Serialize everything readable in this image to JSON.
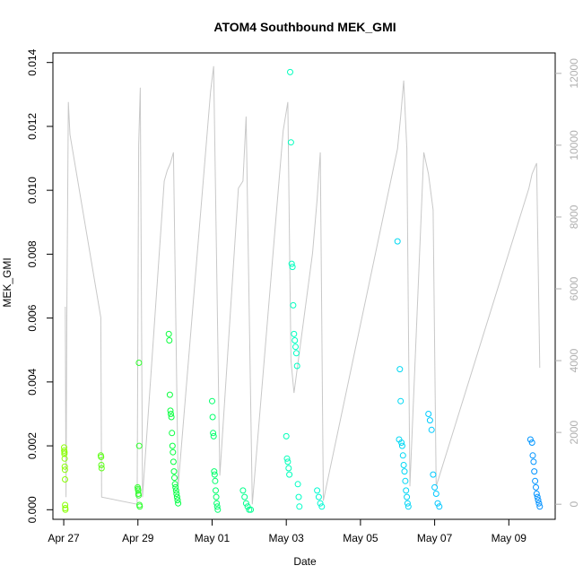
{
  "chart_data": {
    "type": "scatter",
    "title": "ATOM4 Southbound MEK_GMI",
    "xlabel": "Date",
    "ylabel": "MEK_GMI",
    "ylabel_right": "",
    "x_axis": {
      "type": "date",
      "ticks": [
        "Apr 27",
        "Apr 29",
        "May 01",
        "May 03",
        "May 05",
        "May 07",
        "May 09"
      ],
      "tick_values": [
        "2016-04-27",
        "2016-04-29",
        "2016-05-01",
        "2016-05-03",
        "2016-05-05",
        "2016-05-07",
        "2016-05-09"
      ],
      "range": [
        "2016-04-26T17:00",
        "2016-05-10T06:00"
      ]
    },
    "y_left": {
      "ticks": [
        "0.000",
        "0.002",
        "0.004",
        "0.006",
        "0.008",
        "0.010",
        "0.012",
        "0.014"
      ],
      "range": [
        -0.0003,
        0.0143
      ]
    },
    "y_right": {
      "ticks": [
        "0",
        "2000",
        "4000",
        "6000",
        "8000",
        "10000",
        "12000"
      ],
      "range": [
        -420,
        12570
      ],
      "color": "#b0b0b0"
    },
    "colors": {
      "altitude_line": "#c8c8c8",
      "point_gradient": [
        "#99ff00",
        "#00ff44",
        "#00ffcc",
        "#00ccff",
        "#0088ff"
      ]
    },
    "altitude_series": {
      "name": "",
      "color": "#c8c8c8",
      "points": [
        [
          "2016-04-27T01:00",
          5500
        ],
        [
          "2016-04-27T01:30",
          200
        ],
        [
          "2016-04-27T02:00",
          5200
        ],
        [
          "2016-04-27T03:00",
          11200
        ],
        [
          "2016-04-27T04:00",
          10300
        ],
        [
          "2016-04-28T00:00",
          5200
        ],
        [
          "2016-04-28T00:30",
          200
        ],
        [
          "2016-04-28T23:30",
          0
        ],
        [
          "2016-04-29T00:30",
          10000
        ],
        [
          "2016-04-29T01:30",
          11600
        ],
        [
          "2016-04-29T03:00",
          200
        ],
        [
          "2016-04-29T17:00",
          9000
        ],
        [
          "2016-04-29T19:00",
          9300
        ],
        [
          "2016-04-29T21:00",
          9500
        ],
        [
          "2016-04-29T23:00",
          9800
        ],
        [
          "2016-04-30T02:00",
          500
        ],
        [
          "2016-04-30T23:00",
          11500
        ],
        [
          "2016-05-01T01:00",
          12200
        ],
        [
          "2016-05-01T05:00",
          800
        ],
        [
          "2016-05-01T17:00",
          8800
        ],
        [
          "2016-05-01T20:00",
          9000
        ],
        [
          "2016-05-01T22:00",
          10800
        ],
        [
          "2016-05-02T02:00",
          0
        ],
        [
          "2016-05-02T22:00",
          10400
        ],
        [
          "2016-05-03T01:00",
          11200
        ],
        [
          "2016-05-03T03:00",
          4000
        ],
        [
          "2016-05-03T05:00",
          3100
        ],
        [
          "2016-05-03T17:00",
          7000
        ],
        [
          "2016-05-03T20:00",
          8500
        ],
        [
          "2016-05-03T22:00",
          9800
        ],
        [
          "2016-05-04T00:00",
          100
        ],
        [
          "2016-05-06T00:00",
          9900
        ],
        [
          "2016-05-06T02:00",
          10800
        ],
        [
          "2016-05-06T04:00",
          11800
        ],
        [
          "2016-05-06T06:00",
          9900
        ],
        [
          "2016-05-06T08:00",
          500
        ],
        [
          "2016-05-06T17:00",
          9800
        ],
        [
          "2016-05-06T20:00",
          9200
        ],
        [
          "2016-05-06T23:00",
          8200
        ],
        [
          "2016-05-07T01:00",
          500
        ],
        [
          "2016-05-09T13:00",
          8800
        ],
        [
          "2016-05-09T15:00",
          9200
        ],
        [
          "2016-05-09T18:00",
          9500
        ],
        [
          "2016-05-09T20:00",
          3800
        ]
      ]
    },
    "series": [
      {
        "name": "",
        "points": [
          [
            "2016-04-27T00:15",
            0.00195
          ],
          [
            "2016-04-27T00:20",
            0.00185
          ],
          [
            "2016-04-27T00:25",
            0.00175
          ],
          [
            "2016-04-27T00:30",
            0.0018
          ],
          [
            "2016-04-27T00:35",
            0.0016
          ],
          [
            "2016-04-27T00:40",
            0.00135
          ],
          [
            "2016-04-27T00:45",
            0.00125
          ],
          [
            "2016-04-27T00:50",
            0.00095
          ],
          [
            "2016-04-27T00:55",
            0.00015
          ],
          [
            "2016-04-27T01:00",
            5e-05
          ],
          [
            "2016-04-27T01:05",
            0.0
          ],
          [
            "2016-04-28T00:00",
            0.0017
          ],
          [
            "2016-04-28T00:10",
            0.00165
          ],
          [
            "2016-04-28T00:20",
            0.0014
          ],
          [
            "2016-04-28T00:30",
            0.0013
          ],
          [
            "2016-04-28T23:50",
            0.0007
          ],
          [
            "2016-04-29T00:00",
            0.00065
          ],
          [
            "2016-04-29T00:10",
            0.0006
          ],
          [
            "2016-04-29T00:20",
            0.0005
          ],
          [
            "2016-04-29T00:30",
            0.00045
          ],
          [
            "2016-04-29T00:40",
            0.0046
          ],
          [
            "2016-04-29T00:50",
            0.002
          ],
          [
            "2016-04-29T01:00",
            0.00015
          ],
          [
            "2016-04-29T01:10",
            0.0001
          ],
          [
            "2016-04-29T20:00",
            0.0055
          ],
          [
            "2016-04-29T20:20",
            0.0053
          ],
          [
            "2016-04-29T20:40",
            0.0036
          ],
          [
            "2016-04-29T21:00",
            0.0031
          ],
          [
            "2016-04-29T21:20",
            0.003
          ],
          [
            "2016-04-29T21:40",
            0.0029
          ],
          [
            "2016-04-29T22:00",
            0.0024
          ],
          [
            "2016-04-29T22:20",
            0.002
          ],
          [
            "2016-04-29T22:40",
            0.0018
          ],
          [
            "2016-04-29T23:00",
            0.0015
          ],
          [
            "2016-04-29T23:20",
            0.0012
          ],
          [
            "2016-04-29T23:40",
            0.001
          ],
          [
            "2016-04-30T00:00",
            0.0008
          ],
          [
            "2016-04-30T00:20",
            0.0007
          ],
          [
            "2016-04-30T00:40",
            0.0006
          ],
          [
            "2016-04-30T01:00",
            0.0005
          ],
          [
            "2016-04-30T01:20",
            0.0004
          ],
          [
            "2016-04-30T01:40",
            0.0003
          ],
          [
            "2016-04-30T02:00",
            0.0002
          ],
          [
            "2016-05-01T00:00",
            0.0034
          ],
          [
            "2016-05-01T00:20",
            0.0029
          ],
          [
            "2016-05-01T00:40",
            0.0024
          ],
          [
            "2016-05-01T01:00",
            0.0023
          ],
          [
            "2016-05-01T01:20",
            0.0012
          ],
          [
            "2016-05-01T01:40",
            0.0011
          ],
          [
            "2016-05-01T02:00",
            0.0009
          ],
          [
            "2016-05-01T02:20",
            0.0006
          ],
          [
            "2016-05-01T02:40",
            0.0004
          ],
          [
            "2016-05-01T03:00",
            0.0002
          ],
          [
            "2016-05-01T03:20",
            0.0001
          ],
          [
            "2016-05-01T03:40",
            0.0
          ],
          [
            "2016-05-01T20:00",
            0.0006
          ],
          [
            "2016-05-01T21:00",
            0.0004
          ],
          [
            "2016-05-01T22:00",
            0.0002
          ],
          [
            "2016-05-01T23:00",
            0.0001
          ],
          [
            "2016-05-02T00:00",
            0.0
          ],
          [
            "2016-05-02T01:00",
            0.0
          ],
          [
            "2016-05-03T00:00",
            0.0023
          ],
          [
            "2016-05-03T00:30",
            0.0016
          ],
          [
            "2016-05-03T01:00",
            0.0015
          ],
          [
            "2016-05-03T01:30",
            0.0013
          ],
          [
            "2016-05-03T02:00",
            0.0011
          ],
          [
            "2016-05-03T02:30",
            0.0137
          ],
          [
            "2016-05-03T03:00",
            0.0115
          ],
          [
            "2016-05-03T03:30",
            0.0077
          ],
          [
            "2016-05-03T04:00",
            0.0076
          ],
          [
            "2016-05-03T04:30",
            0.0064
          ],
          [
            "2016-05-03T05:00",
            0.0055
          ],
          [
            "2016-05-03T05:30",
            0.0053
          ],
          [
            "2016-05-03T06:00",
            0.0051
          ],
          [
            "2016-05-03T06:30",
            0.0049
          ],
          [
            "2016-05-03T07:00",
            0.0045
          ],
          [
            "2016-05-03T07:30",
            0.0008
          ],
          [
            "2016-05-03T08:00",
            0.0004
          ],
          [
            "2016-05-03T08:30",
            0.0001
          ],
          [
            "2016-05-03T20:00",
            0.0006
          ],
          [
            "2016-05-03T21:00",
            0.0004
          ],
          [
            "2016-05-03T22:00",
            0.0002
          ],
          [
            "2016-05-03T23:00",
            0.0001
          ],
          [
            "2016-05-06T00:00",
            0.0084
          ],
          [
            "2016-05-06T01:00",
            0.0022
          ],
          [
            "2016-05-06T01:30",
            0.0044
          ],
          [
            "2016-05-06T02:00",
            0.0034
          ],
          [
            "2016-05-06T02:30",
            0.0021
          ],
          [
            "2016-05-06T03:00",
            0.002
          ],
          [
            "2016-05-06T03:30",
            0.0017
          ],
          [
            "2016-05-06T04:00",
            0.0014
          ],
          [
            "2016-05-06T04:30",
            0.0012
          ],
          [
            "2016-05-06T05:00",
            0.0009
          ],
          [
            "2016-05-06T05:30",
            0.0006
          ],
          [
            "2016-05-06T06:00",
            0.0004
          ],
          [
            "2016-05-06T06:30",
            0.0002
          ],
          [
            "2016-05-06T07:00",
            0.0001
          ],
          [
            "2016-05-06T20:00",
            0.003
          ],
          [
            "2016-05-06T21:00",
            0.0028
          ],
          [
            "2016-05-06T22:00",
            0.0025
          ],
          [
            "2016-05-06T23:00",
            0.0011
          ],
          [
            "2016-05-07T00:00",
            0.0007
          ],
          [
            "2016-05-07T01:00",
            0.0005
          ],
          [
            "2016-05-07T02:00",
            0.0002
          ],
          [
            "2016-05-07T03:00",
            0.0001
          ],
          [
            "2016-05-09T14:00",
            0.0022
          ],
          [
            "2016-05-09T15:00",
            0.0021
          ],
          [
            "2016-05-09T15:30",
            0.0017
          ],
          [
            "2016-05-09T16:00",
            0.0015
          ],
          [
            "2016-05-09T16:30",
            0.0012
          ],
          [
            "2016-05-09T17:00",
            0.0009
          ],
          [
            "2016-05-09T17:30",
            0.0007
          ],
          [
            "2016-05-09T18:00",
            0.0005
          ],
          [
            "2016-05-09T18:30",
            0.0004
          ],
          [
            "2016-05-09T19:00",
            0.0003
          ],
          [
            "2016-05-09T19:30",
            0.0002
          ],
          [
            "2016-05-09T20:00",
            0.0001
          ]
        ]
      }
    ],
    "grid": false,
    "legend": "none"
  }
}
